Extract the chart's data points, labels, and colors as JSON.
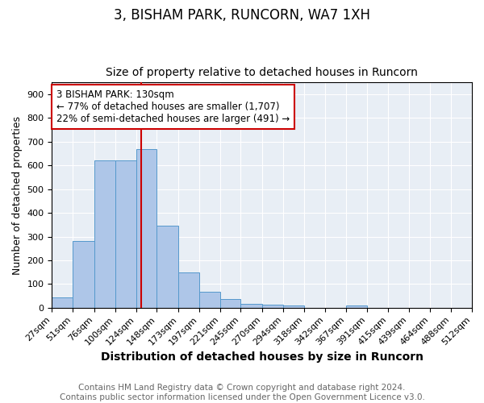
{
  "title1": "3, BISHAM PARK, RUNCORN, WA7 1XH",
  "title2": "Size of property relative to detached houses in Runcorn",
  "xlabel": "Distribution of detached houses by size in Runcorn",
  "ylabel": "Number of detached properties",
  "bin_edges": [
    27,
    51,
    76,
    100,
    124,
    148,
    173,
    197,
    221,
    245,
    270,
    294,
    318,
    342,
    367,
    391,
    415,
    439,
    464,
    488,
    512
  ],
  "bar_heights": [
    45,
    280,
    620,
    620,
    670,
    345,
    150,
    67,
    35,
    15,
    13,
    10,
    0,
    0,
    10,
    0,
    0,
    0,
    0,
    0
  ],
  "bar_color": "#aec6e8",
  "bar_edge_color": "#5599cc",
  "vline_x": 130,
  "vline_color": "#cc0000",
  "annotation_line1": "3 BISHAM PARK: 130sqm",
  "annotation_line2": "← 77% of detached houses are smaller (1,707)",
  "annotation_line3": "22% of semi-detached houses are larger (491) →",
  "annotation_box_color": "white",
  "annotation_box_edgecolor": "#cc0000",
  "ylim": [
    0,
    950
  ],
  "yticks": [
    0,
    100,
    200,
    300,
    400,
    500,
    600,
    700,
    800,
    900
  ],
  "bg_color": "#e8eef5",
  "footer_text": "Contains HM Land Registry data © Crown copyright and database right 2024.\nContains public sector information licensed under the Open Government Licence v3.0.",
  "title1_fontsize": 12,
  "title2_fontsize": 10,
  "xlabel_fontsize": 10,
  "ylabel_fontsize": 9,
  "tick_fontsize": 8,
  "annotation_fontsize": 8.5,
  "footer_fontsize": 7.5
}
